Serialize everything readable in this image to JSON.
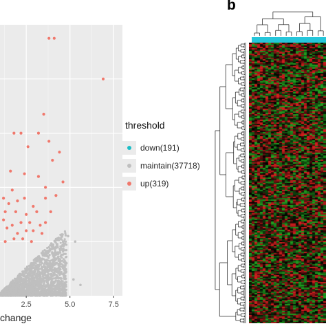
{
  "panel_b_label": "b",
  "chart_data": [
    {
      "type": "scatter",
      "title": "",
      "xlabel": "change",
      "ylabel": "",
      "x_ticks": [
        "2.5",
        "5.0",
        "7.5"
      ],
      "xlim": [
        1.0,
        8.0
      ],
      "ylim": [
        0,
        100
      ],
      "grid": true,
      "legend": {
        "title": "threshold",
        "position": "right",
        "items": [
          {
            "label": "down(191)",
            "color": "#1bbdc6"
          },
          {
            "label": "maintain(37718)",
            "color": "#bfbfbf"
          },
          {
            "label": "up(319)",
            "color": "#f0786c"
          }
        ]
      },
      "series": [
        {
          "name": "up(319)",
          "color": "#f0786c",
          "points": [
            [
              3.8,
              95
            ],
            [
              4.1,
              95
            ],
            [
              6.9,
              80
            ],
            [
              3.5,
              67
            ],
            [
              1.8,
              60
            ],
            [
              2.2,
              60
            ],
            [
              3.2,
              60
            ],
            [
              3.8,
              57
            ],
            [
              2.6,
              55
            ],
            [
              4.4,
              53
            ],
            [
              4.0,
              50
            ],
            [
              1.6,
              46
            ],
            [
              3.2,
              44
            ],
            [
              2.4,
              45
            ],
            [
              4.6,
              42
            ],
            [
              3.6,
              40
            ],
            [
              1.7,
              39
            ],
            [
              1.2,
              36
            ],
            [
              1.5,
              34
            ],
            [
              2.0,
              35
            ],
            [
              2.4,
              36
            ],
            [
              2.9,
              33
            ],
            [
              3.6,
              36
            ],
            [
              4.2,
              37
            ],
            [
              1.3,
              31
            ],
            [
              1.9,
              31
            ],
            [
              2.5,
              30
            ],
            [
              3.1,
              31
            ],
            [
              3.9,
              31
            ],
            [
              1.2,
              28
            ],
            [
              1.7,
              26
            ],
            [
              2.2,
              27
            ],
            [
              2.7,
              27
            ],
            [
              3.3,
              26
            ],
            [
              3.6,
              27
            ],
            [
              1.4,
              25
            ],
            [
              2.0,
              23
            ],
            [
              2.5,
              24
            ],
            [
              2.9,
              24
            ],
            [
              3.4,
              23
            ],
            [
              1.8,
              21
            ],
            [
              2.3,
              21
            ],
            [
              2.8,
              20
            ],
            [
              1.3,
              20
            ]
          ]
        },
        {
          "name": "maintain(37718)",
          "color": "#bfbfbf",
          "points": [
            [
              4.9,
              22
            ],
            [
              5.3,
              20
            ],
            [
              4.5,
              15
            ],
            [
              4.8,
              12
            ],
            [
              5.6,
              4
            ],
            [
              5.2,
              6
            ],
            [
              4.3,
              9
            ],
            [
              4.0,
              11
            ],
            [
              3.7,
              13
            ]
          ],
          "envelope_max_x": 4.6
        },
        {
          "name": "down(191)",
          "color": "#1bbdc6",
          "points": []
        }
      ]
    },
    {
      "type": "heatmap",
      "title": "",
      "colormap": [
        "#1f9e1f",
        "#000000",
        "#d21e1e"
      ],
      "column_group_bar_color": "#26c6da",
      "rows": "clustered",
      "columns": "clustered"
    }
  ]
}
